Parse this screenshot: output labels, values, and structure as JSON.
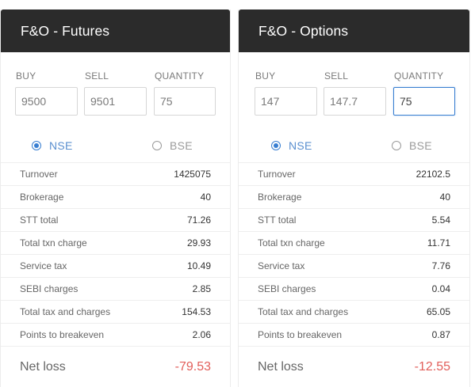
{
  "futures": {
    "title": "F&O - Futures",
    "labels": {
      "buy": "BUY",
      "sell": "SELL",
      "quantity": "QUANTITY"
    },
    "inputs": {
      "buy": "9500",
      "sell": "9501",
      "quantity": "75"
    },
    "exchange": {
      "nse": "NSE",
      "bse": "BSE",
      "selected": "NSE"
    },
    "rows": [
      {
        "label": "Turnover",
        "value": "1425075"
      },
      {
        "label": "Brokerage",
        "value": "40"
      },
      {
        "label": "STT total",
        "value": "71.26"
      },
      {
        "label": "Total txn charge",
        "value": "29.93"
      },
      {
        "label": "Service tax",
        "value": "10.49"
      },
      {
        "label": "SEBI charges",
        "value": "2.85"
      },
      {
        "label": "Total tax and charges",
        "value": "154.53"
      },
      {
        "label": "Points to breakeven",
        "value": "2.06"
      }
    ],
    "net": {
      "label": "Net loss",
      "value": "-79.53"
    }
  },
  "options": {
    "title": "F&O - Options",
    "labels": {
      "buy": "BUY",
      "sell": "SELL",
      "quantity": "QUANTITY"
    },
    "inputs": {
      "buy": "147",
      "sell": "147.7",
      "quantity": "75"
    },
    "exchange": {
      "nse": "NSE",
      "bse": "BSE",
      "selected": "NSE"
    },
    "rows": [
      {
        "label": "Turnover",
        "value": "22102.5"
      },
      {
        "label": "Brokerage",
        "value": "40"
      },
      {
        "label": "STT total",
        "value": "5.54"
      },
      {
        "label": "Total txn charge",
        "value": "11.71"
      },
      {
        "label": "Service tax",
        "value": "7.76"
      },
      {
        "label": "SEBI charges",
        "value": "0.04"
      },
      {
        "label": "Total tax and charges",
        "value": "65.05"
      },
      {
        "label": "Points to breakeven",
        "value": "0.87"
      }
    ],
    "net": {
      "label": "Net loss",
      "value": "-12.55"
    }
  },
  "colors": {
    "header_bg": "#2b2b2b",
    "accent": "#387ed1",
    "loss": "#e25f5b"
  }
}
